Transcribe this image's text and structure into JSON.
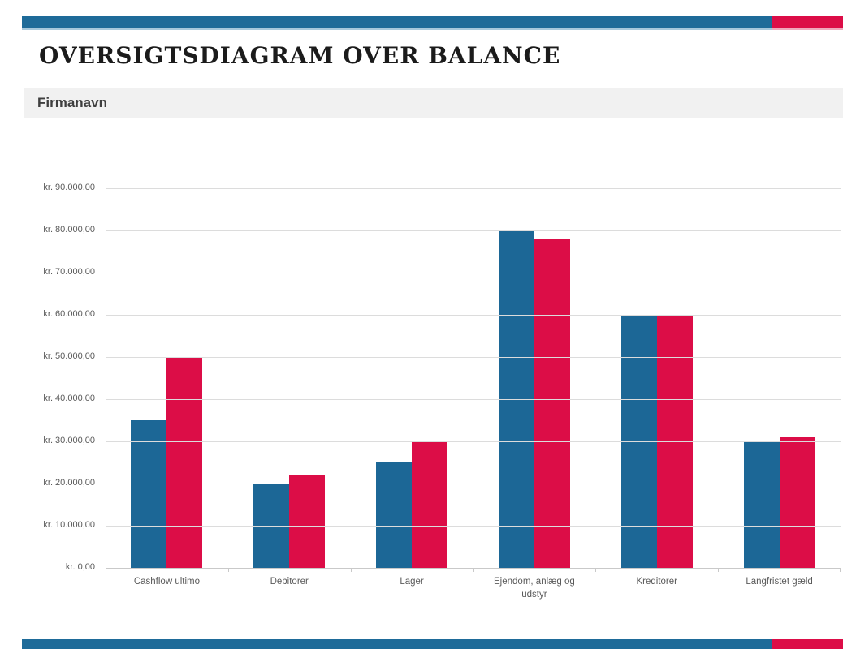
{
  "header": {
    "title": "OVERSIGTSDIAGRAM OVER BALANCE",
    "company": "Firmanavn"
  },
  "colors": {
    "accent_blue": "#1E6B99",
    "accent_red": "#DC0D47",
    "bar_blue": "#1C6796",
    "bar_red": "#DC0D47",
    "band_background": "#F1F1F1",
    "gridline": "#DCDCDC",
    "axis_text": "#5A5A5A"
  },
  "chart_data": {
    "type": "bar",
    "title": "",
    "categories": [
      "Cashflow ultimo",
      "Debitorer",
      "Lager",
      "Ejendom, anlæg og udstyr",
      "Kreditorer",
      "Langfristet gæld"
    ],
    "series": [
      {
        "color": "#1C6796",
        "values": [
          35000,
          20000,
          25000,
          80000,
          60000,
          30000
        ]
      },
      {
        "color": "#DC0D47",
        "values": [
          50000,
          22000,
          30000,
          78000,
          60000,
          31000
        ]
      }
    ],
    "ylim": [
      0,
      90000
    ],
    "y_tick_step": 10000,
    "y_tick_labels_desc": [
      "kr. 90.000,00",
      "kr. 80.000,00",
      "kr. 70.000,00",
      "kr. 60.000,00",
      "kr. 50.000,00",
      "kr. 40.000,00",
      "kr. 30.000,00",
      "kr. 20.000,00",
      "kr. 10.000,00",
      "kr. 0,00"
    ],
    "grid": true,
    "legend": "none"
  }
}
